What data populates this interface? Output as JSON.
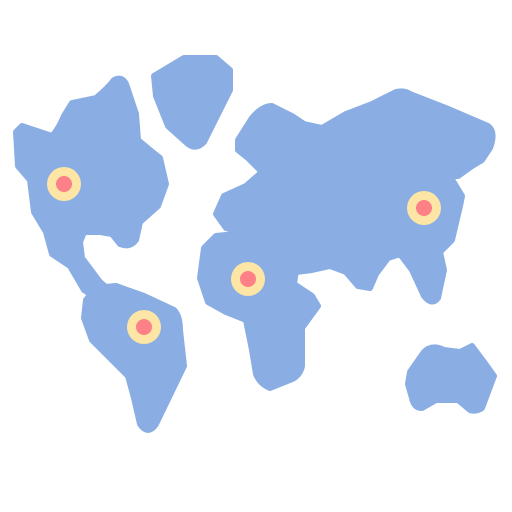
{
  "icon": {
    "name": "world-map-icon",
    "colors": {
      "continent": "#8AAEE4",
      "pin_ring": "#FDE5A5",
      "pin_dot": "#FD8087",
      "background": "#FFFFFF"
    },
    "continents": [
      "north-america",
      "greenland",
      "south-america",
      "eurasia",
      "africa",
      "australia"
    ],
    "markers": [
      "north-america",
      "south-america",
      "africa",
      "asia"
    ]
  }
}
